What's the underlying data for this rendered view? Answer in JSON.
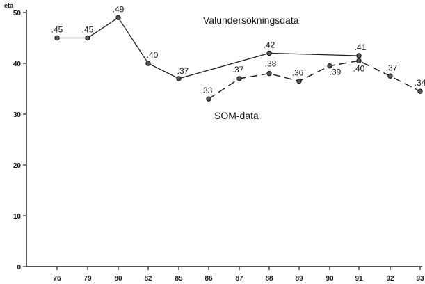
{
  "chart_data": {
    "type": "line",
    "ylabel": "eta",
    "ylim": [
      0,
      50
    ],
    "yticks": [
      0,
      10,
      20,
      30,
      40,
      50
    ],
    "categories": [
      "76",
      "79",
      "80",
      "82",
      "85",
      "86",
      "87",
      "88",
      "89",
      "90",
      "91",
      "92",
      "93"
    ],
    "grid": false,
    "legend": "none",
    "series": [
      {
        "name": "Valundersökningsdata",
        "style": "solid",
        "points": [
          {
            "x": "76",
            "y": 45,
            "label": ".45"
          },
          {
            "x": "79",
            "y": 45,
            "label": ".45"
          },
          {
            "x": "80",
            "y": 49,
            "label": ".49"
          },
          {
            "x": "82",
            "y": 40,
            "label": ".40"
          },
          {
            "x": "85",
            "y": 37,
            "label": ".37"
          },
          {
            "x": "88",
            "y": 42,
            "label": ".42"
          },
          {
            "x": "91",
            "y": 41.5,
            "label": ".41"
          }
        ]
      },
      {
        "name": "SOM-data",
        "style": "dashed",
        "points": [
          {
            "x": "86",
            "y": 33,
            "label": ".33"
          },
          {
            "x": "87",
            "y": 37,
            "label": ".37"
          },
          {
            "x": "88",
            "y": 38,
            "label": ".38"
          },
          {
            "x": "89",
            "y": 36.5,
            "label": ".36"
          },
          {
            "x": "90",
            "y": 39.5,
            "label": ".39"
          },
          {
            "x": "91",
            "y": 40.5,
            "label": ".40"
          },
          {
            "x": "92",
            "y": 37.5,
            "label": ".37"
          },
          {
            "x": "93",
            "y": 34.5,
            "label": ".34"
          }
        ]
      }
    ]
  }
}
